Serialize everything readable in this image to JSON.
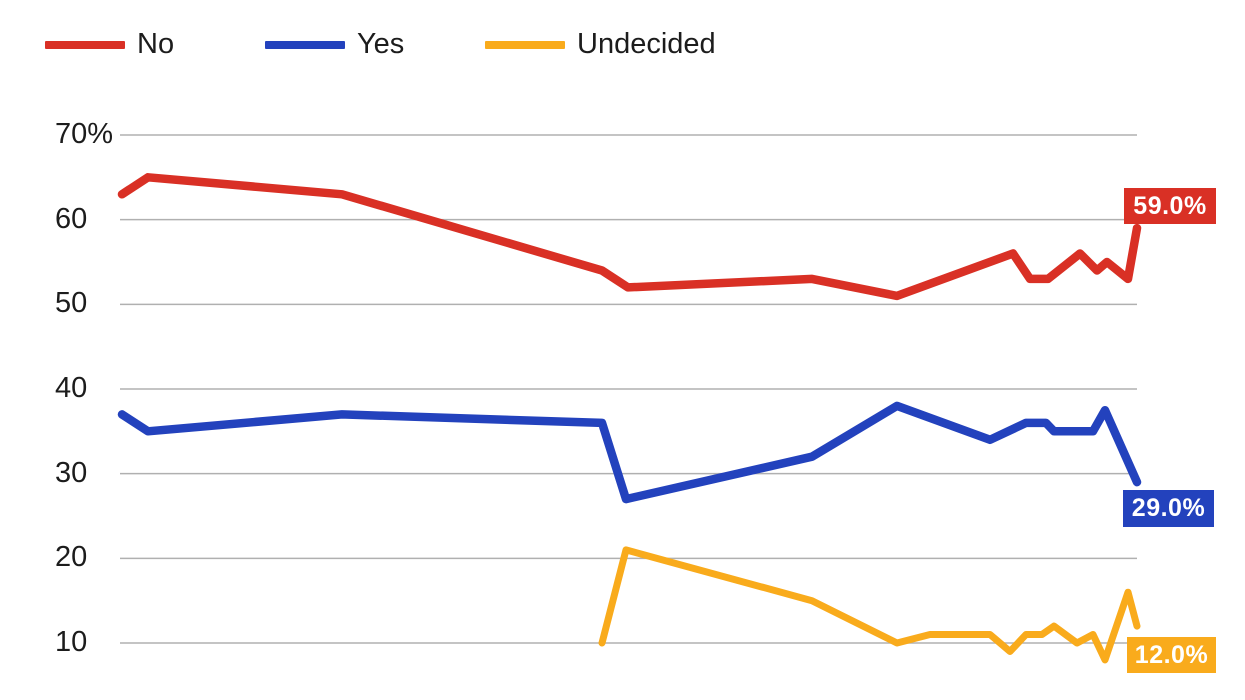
{
  "colors": {
    "no": "#d93025",
    "yes": "#2342bd",
    "undecided": "#f9ab1c",
    "grid": "#b0b0b0",
    "text": "#1c1c1c",
    "label_text": "#ffffff",
    "background": "#ffffff"
  },
  "legend": {
    "items": [
      {
        "label": "No",
        "color_key": "no"
      },
      {
        "label": "Yes",
        "color_key": "yes"
      },
      {
        "label": "Undecided",
        "color_key": "undecided"
      }
    ]
  },
  "chart_data": {
    "type": "line",
    "legend_position": "top",
    "grid": true,
    "ylim": [
      3,
      70
    ],
    "yticks": [
      {
        "label": "70%",
        "value": 70
      },
      {
        "label": "60",
        "value": 60
      },
      {
        "label": "50",
        "value": 50
      },
      {
        "label": "40",
        "value": 40
      },
      {
        "label": "30",
        "value": 30
      },
      {
        "label": "20",
        "value": 20
      },
      {
        "label": "10",
        "value": 10
      }
    ],
    "x_axis_labels": [],
    "series": [
      {
        "name": "No",
        "color_key": "no",
        "end_label": "59.0%",
        "end_value": 59.0,
        "points": [
          [
            122,
            63
          ],
          [
            148,
            65
          ],
          [
            342,
            63
          ],
          [
            602,
            54
          ],
          [
            628,
            52
          ],
          [
            812,
            53
          ],
          [
            897,
            51
          ],
          [
            1013,
            56
          ],
          [
            1030,
            53
          ],
          [
            1048,
            53
          ],
          [
            1080,
            56
          ],
          [
            1097,
            54
          ],
          [
            1107,
            55
          ],
          [
            1128,
            53
          ],
          [
            1137,
            59
          ]
        ]
      },
      {
        "name": "Yes",
        "color_key": "yes",
        "end_label": "29.0%",
        "end_value": 29.0,
        "points": [
          [
            122,
            37
          ],
          [
            148,
            35
          ],
          [
            342,
            37
          ],
          [
            602,
            36
          ],
          [
            626,
            27
          ],
          [
            812,
            32
          ],
          [
            897,
            38
          ],
          [
            990,
            34
          ],
          [
            1026,
            36
          ],
          [
            1046,
            36
          ],
          [
            1054,
            35
          ],
          [
            1093,
            35
          ],
          [
            1105,
            37.5
          ],
          [
            1137,
            29
          ]
        ]
      },
      {
        "name": "Undecided",
        "color_key": "undecided",
        "end_label": "12.0%",
        "end_value": 12.0,
        "points": [
          [
            602,
            10
          ],
          [
            626,
            21
          ],
          [
            812,
            15
          ],
          [
            897,
            10
          ],
          [
            930,
            11
          ],
          [
            990,
            11
          ],
          [
            1010,
            9
          ],
          [
            1026,
            11
          ],
          [
            1042,
            11
          ],
          [
            1054,
            12
          ],
          [
            1077,
            10
          ],
          [
            1093,
            11
          ],
          [
            1105,
            8
          ],
          [
            1128,
            16
          ],
          [
            1137,
            12
          ]
        ]
      }
    ]
  }
}
